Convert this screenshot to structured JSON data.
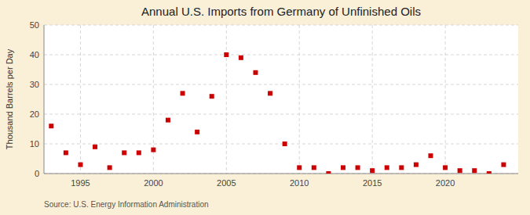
{
  "chart_data": {
    "type": "scatter",
    "title": "Annual U.S. Imports from Germany of Unfinished Oils",
    "ylabel": "Thousand Barrels per Day",
    "source": "Source: U.S. Energy Information Administration",
    "x": [
      1993,
      1994,
      1995,
      1996,
      1997,
      1998,
      1999,
      2000,
      2001,
      2002,
      2003,
      2004,
      2005,
      2006,
      2007,
      2008,
      2009,
      2010,
      2011,
      2012,
      2013,
      2014,
      2015,
      2016,
      2017,
      2018,
      2019,
      2020,
      2021,
      2022,
      2023,
      2024
    ],
    "values": [
      16,
      7,
      3,
      9,
      2,
      7,
      7,
      8,
      18,
      27,
      14,
      26,
      40,
      39,
      34,
      27,
      10,
      2,
      2,
      0,
      2,
      2,
      1,
      2,
      2,
      3,
      6,
      2,
      1,
      1,
      0,
      3
    ],
    "color": "#cc0000",
    "marker": "square",
    "grid": true,
    "xlim": [
      1992.5,
      2025
    ],
    "xticks": [
      1995,
      2000,
      2005,
      2010,
      2015,
      2020
    ],
    "ylim": [
      0,
      50
    ],
    "yticks": [
      0,
      10,
      20,
      30,
      40,
      50
    ]
  }
}
